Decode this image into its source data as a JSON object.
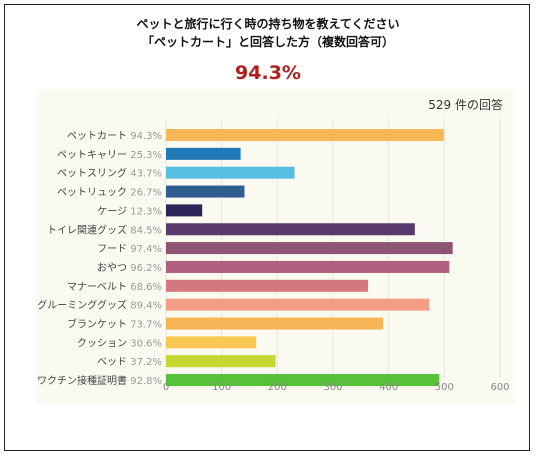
{
  "header": {
    "title_line1": "ペットと旅行に行く時の持ち物を教えてください",
    "title_line2": "「ペットカート」と回答した方（複数回答可）",
    "highlight_value": "94.3%"
  },
  "chart_data": {
    "type": "bar",
    "orientation": "horizontal",
    "response_count_label": "529 件の回答",
    "categories": [
      "ペットカート",
      "ペットキャリー",
      "ペットスリング",
      "ペットリュック",
      "ケージ",
      "トイレ関連グッズ",
      "フード",
      "おやつ",
      "マナーベルト",
      "グルーミンググッズ",
      "ブランケット",
      "クッション",
      "ベッド",
      "ワクチン接種証明書"
    ],
    "percent_labels": [
      "94.3%",
      "25.3%",
      "43.7%",
      "26.7%",
      "12.3%",
      "84.5%",
      "97.4%",
      "96.2%",
      "68.6%",
      "89.4%",
      "73.7%",
      "30.6%",
      "37.2%",
      "92.8%"
    ],
    "values": [
      499,
      134,
      231,
      141,
      65,
      447,
      515,
      509,
      363,
      473,
      390,
      162,
      197,
      491
    ],
    "colors": [
      "#f6b857",
      "#2179b6",
      "#57bde3",
      "#305e93",
      "#2b2457",
      "#5a3a6e",
      "#8d5476",
      "#b0607f",
      "#d5787d",
      "#f39e84",
      "#f7b455",
      "#f9c852",
      "#c6d82f",
      "#58c13a"
    ],
    "xlim": [
      0,
      600
    ],
    "xticks": [
      "0",
      "100",
      "200",
      "300",
      "400",
      "500",
      "600"
    ],
    "grid": true
  }
}
